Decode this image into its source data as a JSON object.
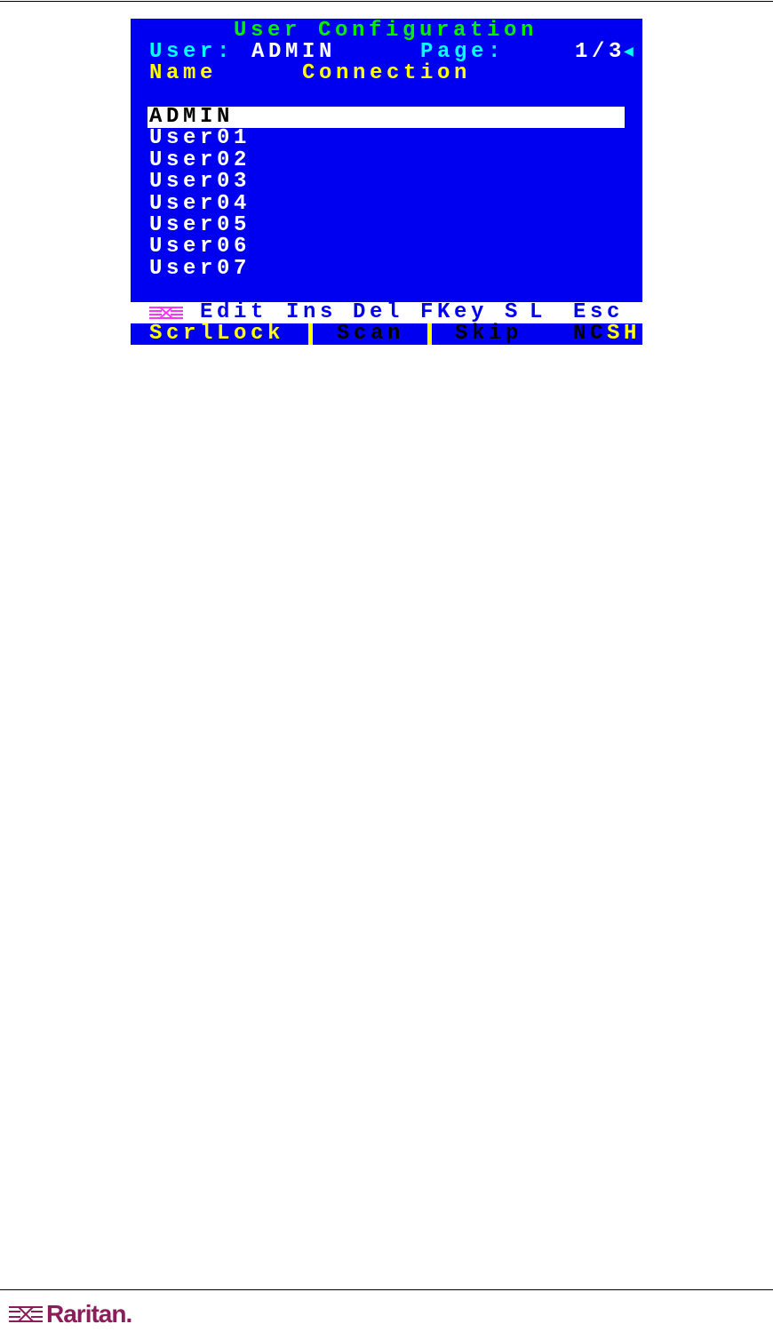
{
  "screen": {
    "title": "User Configuration",
    "user_label": "User:",
    "user_value": "ADMIN",
    "page_label": "Page:",
    "page_value": "1/3",
    "col_name": "Name",
    "col_connection": "Connection",
    "users": [
      "ADMIN",
      "User01",
      "User02",
      "User03",
      "User04",
      "User05",
      "User06",
      "User07"
    ],
    "selected_index": 0,
    "function_keys": [
      "Edit",
      "Ins",
      "Del",
      "FKey",
      "S",
      "L",
      "Esc"
    ],
    "status": {
      "scrllock": "ScrlLock",
      "scan": "Scan",
      "skip": "Skip",
      "nc": "NC",
      "sh": "SH"
    }
  },
  "footer": {
    "logo_text": "Raritan."
  },
  "colors": {
    "screen_bg": "#0000f0",
    "title": "#00ee00",
    "label": "#00ffff",
    "header": "#ffff00",
    "logo": "#8b1e5a"
  }
}
